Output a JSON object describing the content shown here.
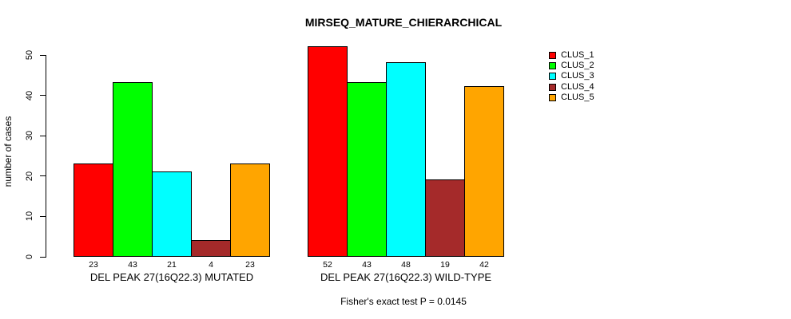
{
  "chart_data": {
    "type": "bar",
    "title": "MIRSEQ_MATURE_CHIERARCHICAL",
    "ylabel": "number of cases",
    "xlabel": "",
    "ylim": [
      0,
      50
    ],
    "yticks": [
      0,
      10,
      20,
      30,
      40,
      50
    ],
    "grid": false,
    "legend_position": "top-right",
    "bar_value_labels_shown": true,
    "series": [
      {
        "name": "CLUS_1",
        "color": "#FF0000"
      },
      {
        "name": "CLUS_2",
        "color": "#00FF00"
      },
      {
        "name": "CLUS_3",
        "color": "#00FFFF"
      },
      {
        "name": "CLUS_4",
        "color": "#A52A2A"
      },
      {
        "name": "CLUS_5",
        "color": "#FFA500"
      }
    ],
    "groups": [
      {
        "label": "DEL PEAK 27(16Q22.3) MUTATED",
        "values": [
          23,
          43,
          21,
          4,
          23
        ]
      },
      {
        "label": "DEL PEAK 27(16Q22.3) WILD-TYPE",
        "values": [
          52,
          43,
          48,
          19,
          42
        ]
      }
    ],
    "caption": "Fisher's exact test P = 0.0145"
  }
}
